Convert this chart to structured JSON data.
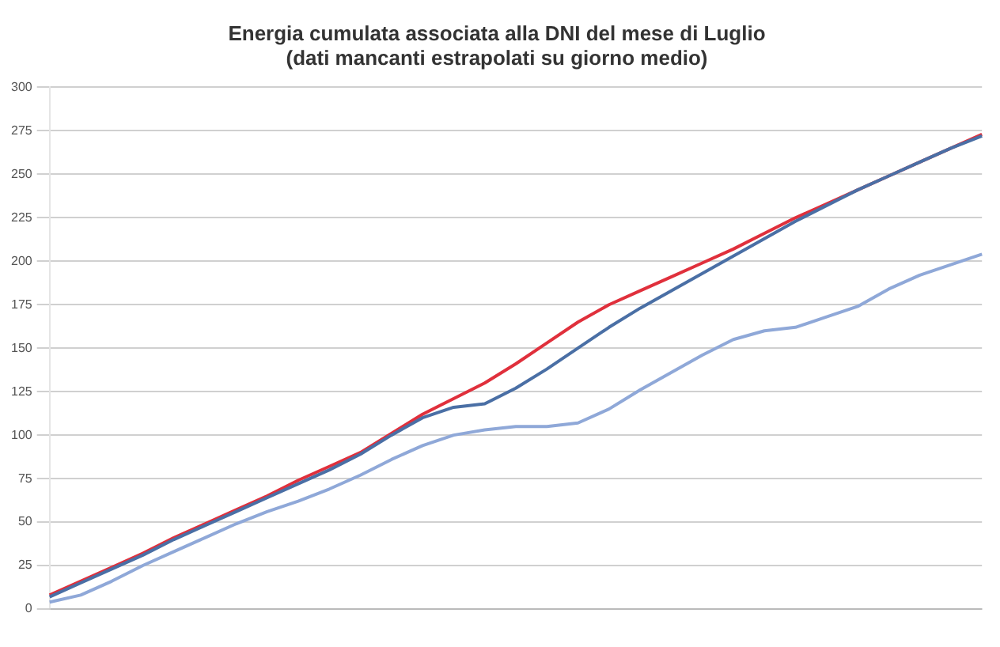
{
  "chart_data": {
    "type": "line",
    "title": [
      "Energia cumulata associata alla DNI del mese di Luglio",
      "(dati mancanti estrapolati su giorno medio)"
    ],
    "categories": [
      null,
      null,
      null,
      null,
      null,
      null,
      null,
      null,
      null,
      null,
      null,
      null,
      null,
      null,
      null,
      null,
      null,
      null,
      null,
      null,
      null,
      null,
      null,
      null,
      null,
      null,
      null,
      null,
      null,
      null,
      null
    ],
    "series": [
      {
        "color": "#4a6fa5",
        "values": [
          7,
          15,
          23,
          31,
          40,
          48,
          56,
          64,
          72,
          80,
          89,
          100,
          110,
          116,
          118,
          127,
          138,
          150,
          162,
          173,
          183,
          193,
          203,
          213,
          223,
          232,
          241,
          249,
          257,
          265,
          272
        ]
      },
      {
        "color": "#8fa8d8",
        "values": [
          4,
          8,
          16,
          25,
          33,
          41,
          49,
          56,
          62,
          69,
          77,
          86,
          94,
          100,
          103,
          105,
          105,
          107,
          115,
          126,
          136,
          146,
          155,
          160,
          162,
          168,
          174,
          184,
          192,
          198,
          204
        ]
      },
      {
        "color": "#e0303c",
        "values": [
          8,
          16,
          24,
          32,
          41,
          49,
          57,
          65,
          74,
          82,
          90,
          101,
          112,
          121,
          130,
          141,
          153,
          165,
          175,
          183,
          191,
          199,
          207,
          216,
          225,
          233,
          241,
          249,
          257,
          265,
          273
        ]
      }
    ],
    "ylim": [
      0,
      300
    ],
    "yticks": [
      0,
      25,
      50,
      75,
      100,
      125,
      150,
      175,
      200,
      225,
      250,
      275,
      300
    ],
    "grid": "y",
    "marker": "none",
    "line_style": "solid"
  }
}
